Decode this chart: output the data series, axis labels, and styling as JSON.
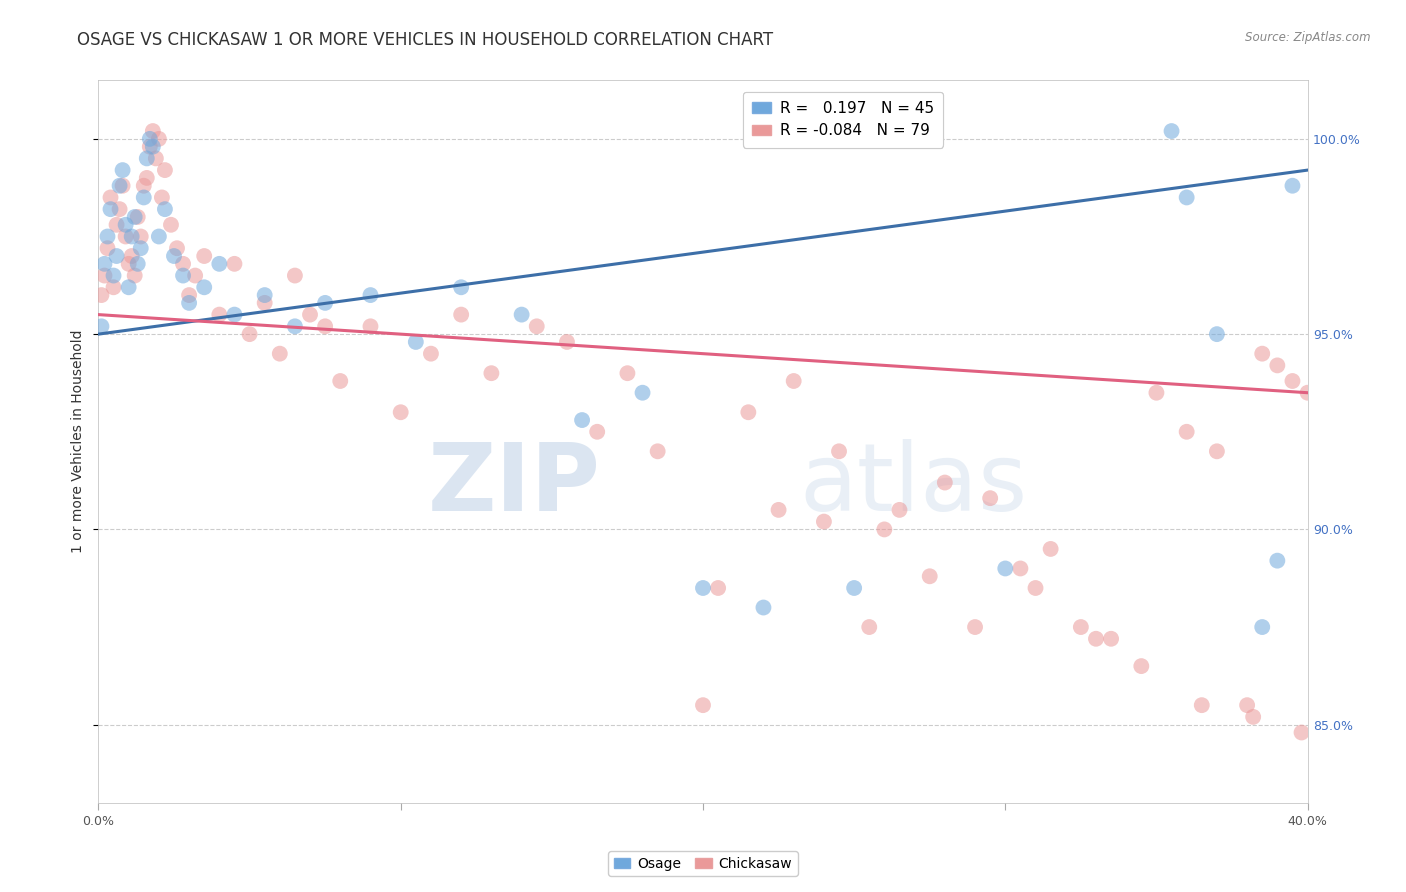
{
  "title": "OSAGE VS CHICKASAW 1 OR MORE VEHICLES IN HOUSEHOLD CORRELATION CHART",
  "source": "Source: ZipAtlas.com",
  "ylabel": "1 or more Vehicles in Household",
  "xlim": [
    0.0,
    40.0
  ],
  "ylim": [
    83.0,
    101.5
  ],
  "yticks": [
    85.0,
    90.0,
    95.0,
    100.0
  ],
  "xticks": [
    0.0,
    10.0,
    20.0,
    30.0,
    40.0
  ],
  "xtick_labels": [
    "0.0%",
    "",
    "",
    "",
    "40.0%"
  ],
  "ytick_labels": [
    "85.0%",
    "90.0%",
    "95.0%",
    "100.0%"
  ],
  "blue_color": "#6fa8dc",
  "pink_color": "#ea9999",
  "blue_line_color": "#3d6fa8",
  "pink_line_color": "#e06080",
  "osage_label": "Osage",
  "chickasaw_label": "Chickasaw",
  "watermark_zip": "ZIP",
  "watermark_atlas": "atlas",
  "background_color": "#ffffff",
  "grid_color": "#cccccc",
  "title_fontsize": 12,
  "axis_label_fontsize": 10,
  "tick_fontsize": 9,
  "dot_size": 130,
  "dot_alpha": 0.55,
  "line_width": 2.2,
  "osage_x": [
    0.1,
    0.2,
    0.3,
    0.4,
    0.5,
    0.6,
    0.7,
    0.8,
    0.9,
    1.0,
    1.1,
    1.2,
    1.3,
    1.4,
    1.5,
    1.6,
    1.7,
    1.8,
    2.0,
    2.2,
    2.5,
    2.8,
    3.0,
    3.5,
    4.0,
    4.5,
    5.5,
    6.5,
    7.5,
    9.0,
    10.5,
    12.0,
    14.0,
    16.0,
    18.0,
    20.0,
    22.0,
    25.0,
    30.0,
    35.5,
    36.0,
    37.0,
    38.5,
    39.0,
    39.5
  ],
  "osage_y": [
    95.2,
    96.8,
    97.5,
    98.2,
    96.5,
    97.0,
    98.8,
    99.2,
    97.8,
    96.2,
    97.5,
    98.0,
    96.8,
    97.2,
    98.5,
    99.5,
    100.0,
    99.8,
    97.5,
    98.2,
    97.0,
    96.5,
    95.8,
    96.2,
    96.8,
    95.5,
    96.0,
    95.2,
    95.8,
    96.0,
    94.8,
    96.2,
    95.5,
    92.8,
    93.5,
    88.5,
    88.0,
    88.5,
    89.0,
    100.2,
    98.5,
    95.0,
    87.5,
    89.2,
    98.8
  ],
  "chickasaw_x": [
    0.1,
    0.2,
    0.3,
    0.4,
    0.5,
    0.6,
    0.7,
    0.8,
    0.9,
    1.0,
    1.1,
    1.2,
    1.3,
    1.4,
    1.5,
    1.6,
    1.7,
    1.8,
    1.9,
    2.0,
    2.1,
    2.2,
    2.4,
    2.6,
    2.8,
    3.0,
    3.2,
    3.5,
    4.0,
    4.5,
    5.0,
    5.5,
    6.0,
    6.5,
    7.0,
    7.5,
    8.0,
    9.0,
    10.0,
    11.0,
    12.0,
    13.0,
    14.5,
    15.5,
    16.5,
    17.5,
    18.5,
    20.0,
    21.5,
    23.0,
    24.5,
    25.5,
    26.5,
    28.0,
    29.5,
    30.5,
    31.5,
    32.5,
    33.5,
    35.0,
    36.0,
    37.0,
    38.0,
    38.5,
    39.0,
    39.5,
    40.0,
    20.5,
    22.5,
    24.0,
    26.0,
    27.5,
    29.0,
    31.0,
    33.0,
    34.5,
    36.5,
    38.2,
    39.8
  ],
  "chickasaw_y": [
    96.0,
    96.5,
    97.2,
    98.5,
    96.2,
    97.8,
    98.2,
    98.8,
    97.5,
    96.8,
    97.0,
    96.5,
    98.0,
    97.5,
    98.8,
    99.0,
    99.8,
    100.2,
    99.5,
    100.0,
    98.5,
    99.2,
    97.8,
    97.2,
    96.8,
    96.0,
    96.5,
    97.0,
    95.5,
    96.8,
    95.0,
    95.8,
    94.5,
    96.5,
    95.5,
    95.2,
    93.8,
    95.2,
    93.0,
    94.5,
    95.5,
    94.0,
    95.2,
    94.8,
    92.5,
    94.0,
    92.0,
    85.5,
    93.0,
    93.8,
    92.0,
    87.5,
    90.5,
    91.2,
    90.8,
    89.0,
    89.5,
    87.5,
    87.2,
    93.5,
    92.5,
    92.0,
    85.5,
    94.5,
    94.2,
    93.8,
    93.5,
    88.5,
    90.5,
    90.2,
    90.0,
    88.8,
    87.5,
    88.5,
    87.2,
    86.5,
    85.5,
    85.2,
    84.8
  ]
}
